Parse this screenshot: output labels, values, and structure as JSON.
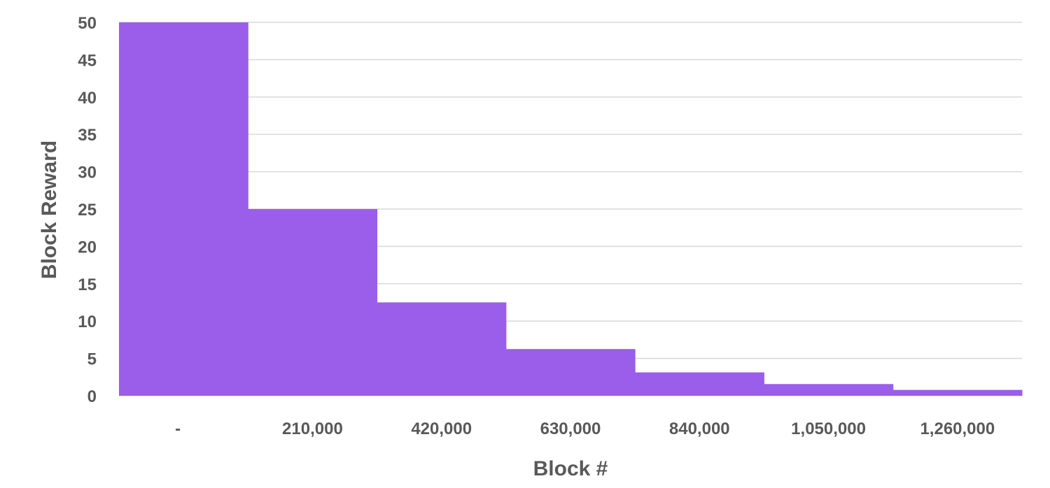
{
  "chart_data": {
    "type": "area",
    "step": true,
    "title": "",
    "xlabel": "Block #",
    "ylabel": "Block Reward",
    "categories": [
      "-",
      "210,000",
      "420,000",
      "630,000",
      "840,000",
      "1,050,000",
      "1,260,000"
    ],
    "x_start": [
      0,
      210000,
      420000,
      630000,
      840000,
      1050000,
      1260000
    ],
    "values": [
      50,
      25,
      12.5,
      6.25,
      3.125,
      1.5625,
      0.78125
    ],
    "ylim": [
      0,
      50
    ],
    "yticks": [
      0,
      5,
      10,
      15,
      20,
      25,
      30,
      35,
      40,
      45,
      50
    ],
    "grid": true,
    "legend": "none",
    "fill_color": "#9a5eea",
    "grid_color": "#d9d9d9",
    "text_color": "#595959"
  }
}
